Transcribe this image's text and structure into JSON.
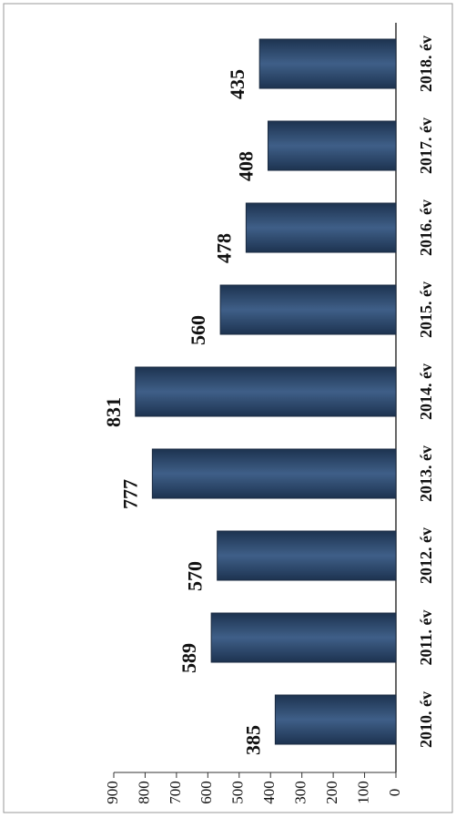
{
  "chart_data": {
    "type": "bar",
    "categories": [
      "2010. év",
      "2011. év",
      "2012. év",
      "2013. év",
      "2014. év",
      "2015. év",
      "2016. év",
      "2017. év",
      "2018. év"
    ],
    "values": [
      385,
      589,
      570,
      777,
      831,
      560,
      478,
      408,
      435
    ],
    "color": "#2f4b70",
    "ylim": [
      0,
      900
    ],
    "yticks": [
      0,
      100,
      200,
      300,
      400,
      500,
      600,
      700,
      800,
      900
    ]
  }
}
